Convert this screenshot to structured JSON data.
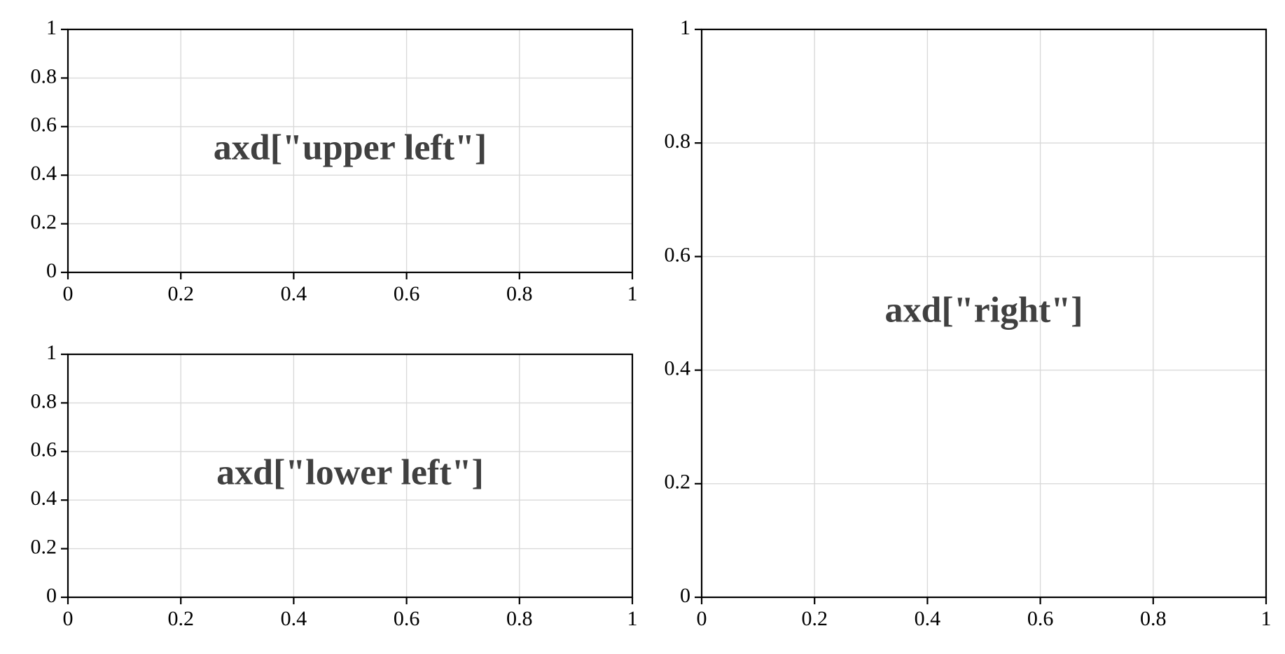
{
  "chart_data": [
    {
      "type": "scatter",
      "panel": "upper-left",
      "title": "",
      "xlabel": "",
      "ylabel": "",
      "xlim": [
        0,
        1
      ],
      "ylim": [
        0,
        1
      ],
      "x_ticks": [
        "0",
        "0.2",
        "0.4",
        "0.6",
        "0.8",
        "1"
      ],
      "y_ticks": [
        "0",
        "0.2",
        "0.4",
        "0.6",
        "0.8",
        "1"
      ],
      "grid": true,
      "series": [],
      "annotation": {
        "text": "axd[\"upper left\"]",
        "x": 0.5,
        "y": 0.5
      }
    },
    {
      "type": "scatter",
      "panel": "lower-left",
      "title": "",
      "xlabel": "",
      "ylabel": "",
      "xlim": [
        0,
        1
      ],
      "ylim": [
        0,
        1
      ],
      "x_ticks": [
        "0",
        "0.2",
        "0.4",
        "0.6",
        "0.8",
        "1"
      ],
      "y_ticks": [
        "0",
        "0.2",
        "0.4",
        "0.6",
        "0.8",
        "1"
      ],
      "grid": true,
      "series": [],
      "annotation": {
        "text": "axd[\"lower left\"]",
        "x": 0.5,
        "y": 0.5
      }
    },
    {
      "type": "scatter",
      "panel": "right",
      "title": "",
      "xlabel": "",
      "ylabel": "",
      "xlim": [
        0,
        1
      ],
      "ylim": [
        0,
        1
      ],
      "x_ticks": [
        "0",
        "0.2",
        "0.4",
        "0.6",
        "0.8",
        "1"
      ],
      "y_ticks": [
        "0",
        "0.2",
        "0.4",
        "0.6",
        "0.8",
        "1"
      ],
      "grid": true,
      "series": [],
      "annotation": {
        "text": "axd[\"right\"]",
        "x": 0.5,
        "y": 0.5
      }
    }
  ],
  "colors": {
    "axis": "#000000",
    "grid": "#d9d9d9",
    "annotation": "#404040",
    "background": "#ffffff"
  }
}
